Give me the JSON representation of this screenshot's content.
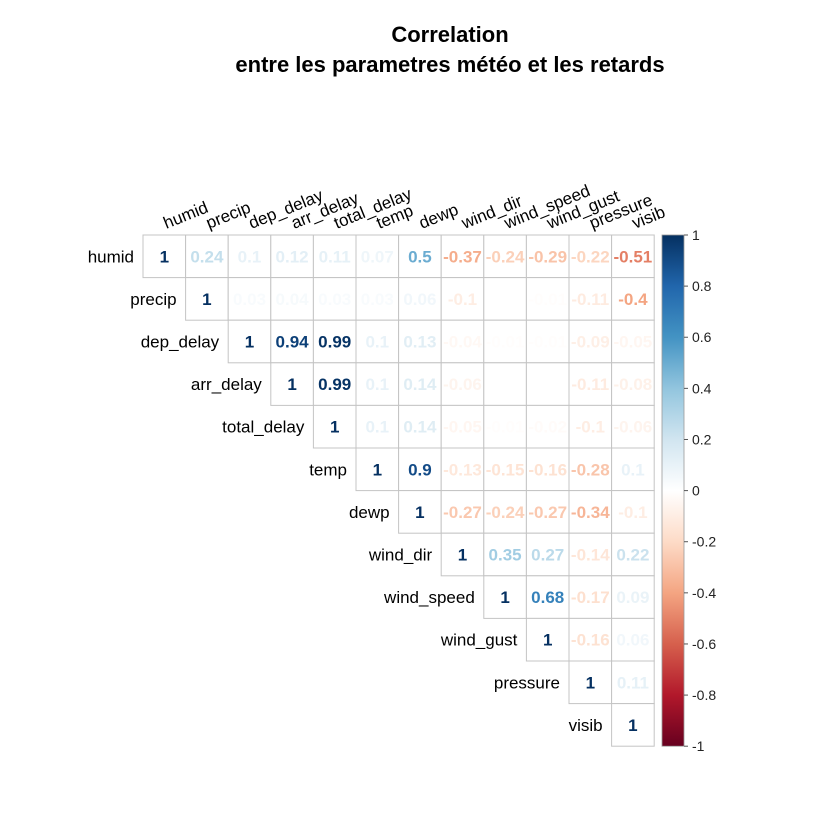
{
  "chart_data": {
    "type": "heatmap",
    "title": "Correlation",
    "subtitle": "entre les parametres météo et les retards",
    "variables": [
      "humid",
      "precip",
      "dep_delay",
      "arr_delay",
      "total_delay",
      "temp",
      "dewp",
      "wind_dir",
      "wind_speed",
      "wind_gust",
      "pressure",
      "visib"
    ],
    "matrix": [
      [
        1,
        0.24,
        0.1,
        0.12,
        0.11,
        0.07,
        0.5,
        -0.37,
        -0.24,
        -0.29,
        -0.22,
        -0.51
      ],
      [
        null,
        1,
        0.03,
        0.04,
        0.03,
        0.03,
        0.06,
        -0.1,
        0,
        -0.01,
        -0.11,
        -0.4
      ],
      [
        null,
        null,
        1,
        0.94,
        0.99,
        0.1,
        0.13,
        -0.04,
        -0.01,
        -0.01,
        -0.09,
        -0.05
      ],
      [
        null,
        null,
        null,
        1,
        0.99,
        0.1,
        0.14,
        -0.06,
        0,
        0,
        -0.11,
        -0.08
      ],
      [
        null,
        null,
        null,
        null,
        1,
        0.1,
        0.14,
        -0.05,
        -0.01,
        -0.02,
        -0.1,
        -0.06
      ],
      [
        null,
        null,
        null,
        null,
        null,
        1,
        0.9,
        -0.13,
        -0.15,
        -0.16,
        -0.28,
        0.1
      ],
      [
        null,
        null,
        null,
        null,
        null,
        null,
        1,
        -0.27,
        -0.24,
        -0.27,
        -0.34,
        -0.1
      ],
      [
        null,
        null,
        null,
        null,
        null,
        null,
        null,
        1,
        0.35,
        0.27,
        -0.14,
        0.22
      ],
      [
        null,
        null,
        null,
        null,
        null,
        null,
        null,
        null,
        1,
        0.68,
        -0.17,
        0.09
      ],
      [
        null,
        null,
        null,
        null,
        null,
        null,
        null,
        null,
        null,
        1,
        -0.16,
        0.06
      ],
      [
        null,
        null,
        null,
        null,
        null,
        null,
        null,
        null,
        null,
        null,
        1,
        0.11
      ],
      [
        null,
        null,
        null,
        null,
        null,
        null,
        null,
        null,
        null,
        null,
        null,
        1
      ]
    ],
    "display": "upper",
    "colorbar": {
      "range": [
        -1,
        1
      ],
      "ticks": [
        "1",
        "0.8",
        "0.6",
        "0.4",
        "0.2",
        "0",
        "-0.2",
        "-0.4",
        "-0.6",
        "-0.8",
        "-1"
      ],
      "colors": [
        "#67001F",
        "#B2182B",
        "#D6604D",
        "#F4A582",
        "#FDDBC7",
        "#FFFFFF",
        "#D1E5F0",
        "#92C5DE",
        "#4393C3",
        "#2166AC",
        "#053061"
      ]
    }
  }
}
